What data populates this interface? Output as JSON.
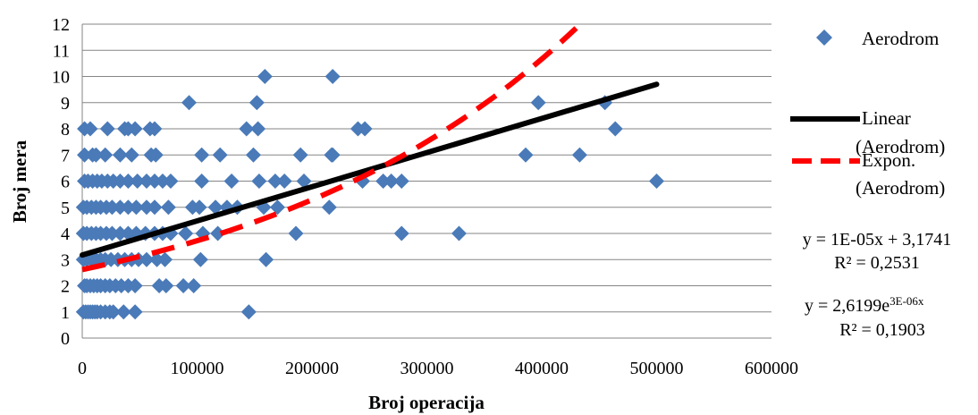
{
  "chart_data": {
    "type": "scatter",
    "xlabel": "Broj operacija",
    "ylabel": "Broj mera",
    "xlim": [
      0,
      600000
    ],
    "ylim": [
      0,
      12
    ],
    "x_ticks": [
      "0",
      "100000",
      "200000",
      "300000",
      "400000",
      "500000",
      "600000"
    ],
    "y_ticks": [
      "0",
      "1",
      "2",
      "3",
      "4",
      "5",
      "6",
      "7",
      "8",
      "9",
      "10",
      "11",
      "12"
    ],
    "grid": "horizontal",
    "legend_position": "right",
    "series": [
      {
        "name": "Aerodrom",
        "marker": "diamond",
        "color": "#4a7ab8",
        "points": [
          [
            1000,
            1
          ],
          [
            3000,
            1
          ],
          [
            5000,
            1
          ],
          [
            7000,
            1
          ],
          [
            9000,
            1
          ],
          [
            11000,
            1
          ],
          [
            13000,
            1
          ],
          [
            16000,
            1
          ],
          [
            20000,
            1
          ],
          [
            24000,
            1
          ],
          [
            27000,
            1
          ],
          [
            36000,
            1
          ],
          [
            46000,
            1
          ],
          [
            145000,
            1
          ],
          [
            2000,
            2
          ],
          [
            4000,
            2
          ],
          [
            7000,
            2
          ],
          [
            10000,
            2
          ],
          [
            13000,
            2
          ],
          [
            16000,
            2
          ],
          [
            20000,
            2
          ],
          [
            24000,
            2
          ],
          [
            29000,
            2
          ],
          [
            34000,
            2
          ],
          [
            40000,
            2
          ],
          [
            46000,
            2
          ],
          [
            67000,
            2
          ],
          [
            73000,
            2
          ],
          [
            88000,
            2
          ],
          [
            97000,
            2
          ],
          [
            1000,
            3
          ],
          [
            4000,
            3
          ],
          [
            8000,
            3
          ],
          [
            12000,
            3
          ],
          [
            16000,
            3
          ],
          [
            20000,
            3
          ],
          [
            25000,
            3
          ],
          [
            31000,
            3
          ],
          [
            37000,
            3
          ],
          [
            43000,
            3
          ],
          [
            49000,
            3
          ],
          [
            56000,
            3
          ],
          [
            65000,
            3
          ],
          [
            72000,
            3
          ],
          [
            103000,
            3
          ],
          [
            160000,
            3
          ],
          [
            1000,
            4
          ],
          [
            4000,
            4
          ],
          [
            8000,
            4
          ],
          [
            12000,
            4
          ],
          [
            16000,
            4
          ],
          [
            21000,
            4
          ],
          [
            26000,
            4
          ],
          [
            33000,
            4
          ],
          [
            40000,
            4
          ],
          [
            47000,
            4
          ],
          [
            55000,
            4
          ],
          [
            63000,
            4
          ],
          [
            70000,
            4
          ],
          [
            77000,
            4
          ],
          [
            90000,
            4
          ],
          [
            105000,
            4
          ],
          [
            118000,
            4
          ],
          [
            186000,
            4
          ],
          [
            278000,
            4
          ],
          [
            328000,
            4
          ],
          [
            1000,
            5
          ],
          [
            4000,
            5
          ],
          [
            8000,
            5
          ],
          [
            12000,
            5
          ],
          [
            16000,
            5
          ],
          [
            21000,
            5
          ],
          [
            26000,
            5
          ],
          [
            33000,
            5
          ],
          [
            40000,
            5
          ],
          [
            47000,
            5
          ],
          [
            56000,
            5
          ],
          [
            63000,
            5
          ],
          [
            75000,
            5
          ],
          [
            96000,
            5
          ],
          [
            102000,
            5
          ],
          [
            116000,
            5
          ],
          [
            126000,
            5
          ],
          [
            135000,
            5
          ],
          [
            158000,
            5
          ],
          [
            170000,
            5
          ],
          [
            215000,
            5
          ],
          [
            2000,
            6
          ],
          [
            5000,
            6
          ],
          [
            9000,
            6
          ],
          [
            13000,
            6
          ],
          [
            17000,
            6
          ],
          [
            22000,
            6
          ],
          [
            27000,
            6
          ],
          [
            33000,
            6
          ],
          [
            40000,
            6
          ],
          [
            48000,
            6
          ],
          [
            56000,
            6
          ],
          [
            63000,
            6
          ],
          [
            70000,
            6
          ],
          [
            77000,
            6
          ],
          [
            104000,
            6
          ],
          [
            130000,
            6
          ],
          [
            154000,
            6
          ],
          [
            168000,
            6
          ],
          [
            176000,
            6
          ],
          [
            193000,
            6
          ],
          [
            244000,
            6
          ],
          [
            262000,
            6
          ],
          [
            269000,
            6
          ],
          [
            278000,
            6
          ],
          [
            500000,
            6
          ],
          [
            2000,
            7
          ],
          [
            9000,
            7
          ],
          [
            12000,
            7
          ],
          [
            20000,
            7
          ],
          [
            33000,
            7
          ],
          [
            43000,
            7
          ],
          [
            60000,
            7
          ],
          [
            64000,
            7
          ],
          [
            104000,
            7
          ],
          [
            120000,
            7
          ],
          [
            149000,
            7
          ],
          [
            190000,
            7
          ],
          [
            217000,
            7
          ],
          [
            218000,
            7
          ],
          [
            386000,
            7
          ],
          [
            433000,
            7
          ],
          [
            2000,
            8
          ],
          [
            7000,
            8
          ],
          [
            22000,
            8
          ],
          [
            37000,
            8
          ],
          [
            40000,
            8
          ],
          [
            46000,
            8
          ],
          [
            59000,
            8
          ],
          [
            63000,
            8
          ],
          [
            143000,
            8
          ],
          [
            153000,
            8
          ],
          [
            240000,
            8
          ],
          [
            246000,
            8
          ],
          [
            464000,
            8
          ],
          [
            93000,
            9
          ],
          [
            152000,
            9
          ],
          [
            397000,
            9
          ],
          [
            455000,
            9
          ],
          [
            159000,
            10
          ],
          [
            218000,
            10
          ]
        ]
      },
      {
        "name": "Linear\n(Aerodrom)",
        "type": "trendline-linear",
        "color": "#000000",
        "x": [
          0,
          500000
        ],
        "y": [
          3.1741,
          9.7
        ]
      },
      {
        "name": "Expon.\n(Aerodrom)",
        "type": "trendline-exponential",
        "color": "#ff0000",
        "x": [
          0,
          430000
        ],
        "y": [
          2.62,
          11.85
        ]
      }
    ],
    "annotations": [
      {
        "text": "y = 1E-05x + 3,1741",
        "line2": "R² = 0,2531"
      },
      {
        "text": "y = 2,6199e",
        "sup": "3E-06x",
        "line2": "R² = 0,1903"
      }
    ]
  }
}
